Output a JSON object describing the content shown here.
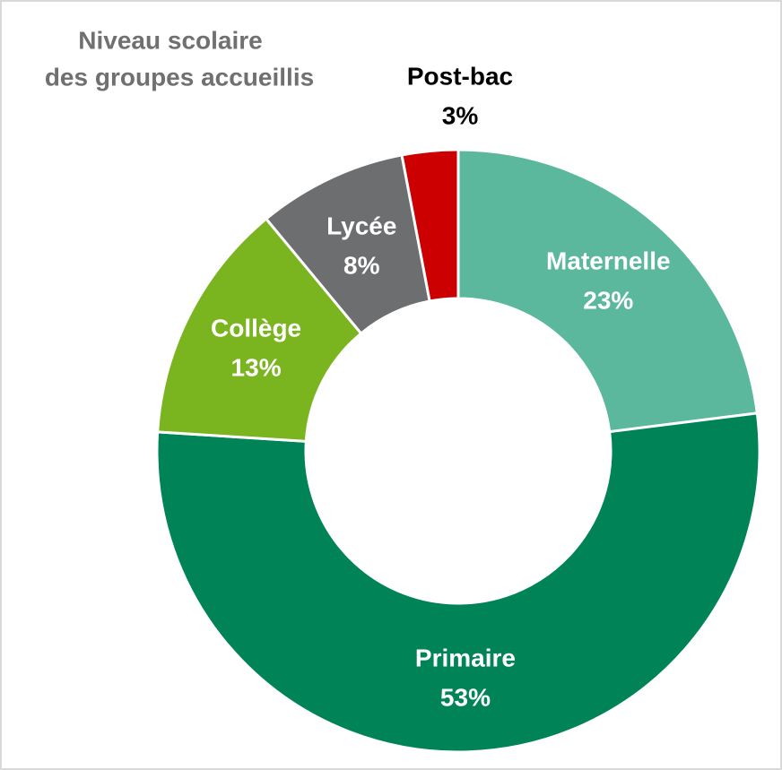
{
  "chart_data": {
    "type": "donut",
    "title": [
      "Niveau scolaire",
      "des groupes accueillis"
    ],
    "categories": [
      "Maternelle",
      "Primaire",
      "Collège",
      "Lycée",
      "Post-bac"
    ],
    "values": [
      23,
      53,
      13,
      8,
      3
    ],
    "value_labels": [
      "23%",
      "53%",
      "13%",
      "8%",
      "3%"
    ],
    "colors": [
      "#5bb89c",
      "#008457",
      "#7ab41f",
      "#6d6e70",
      "#cc0000"
    ]
  }
}
